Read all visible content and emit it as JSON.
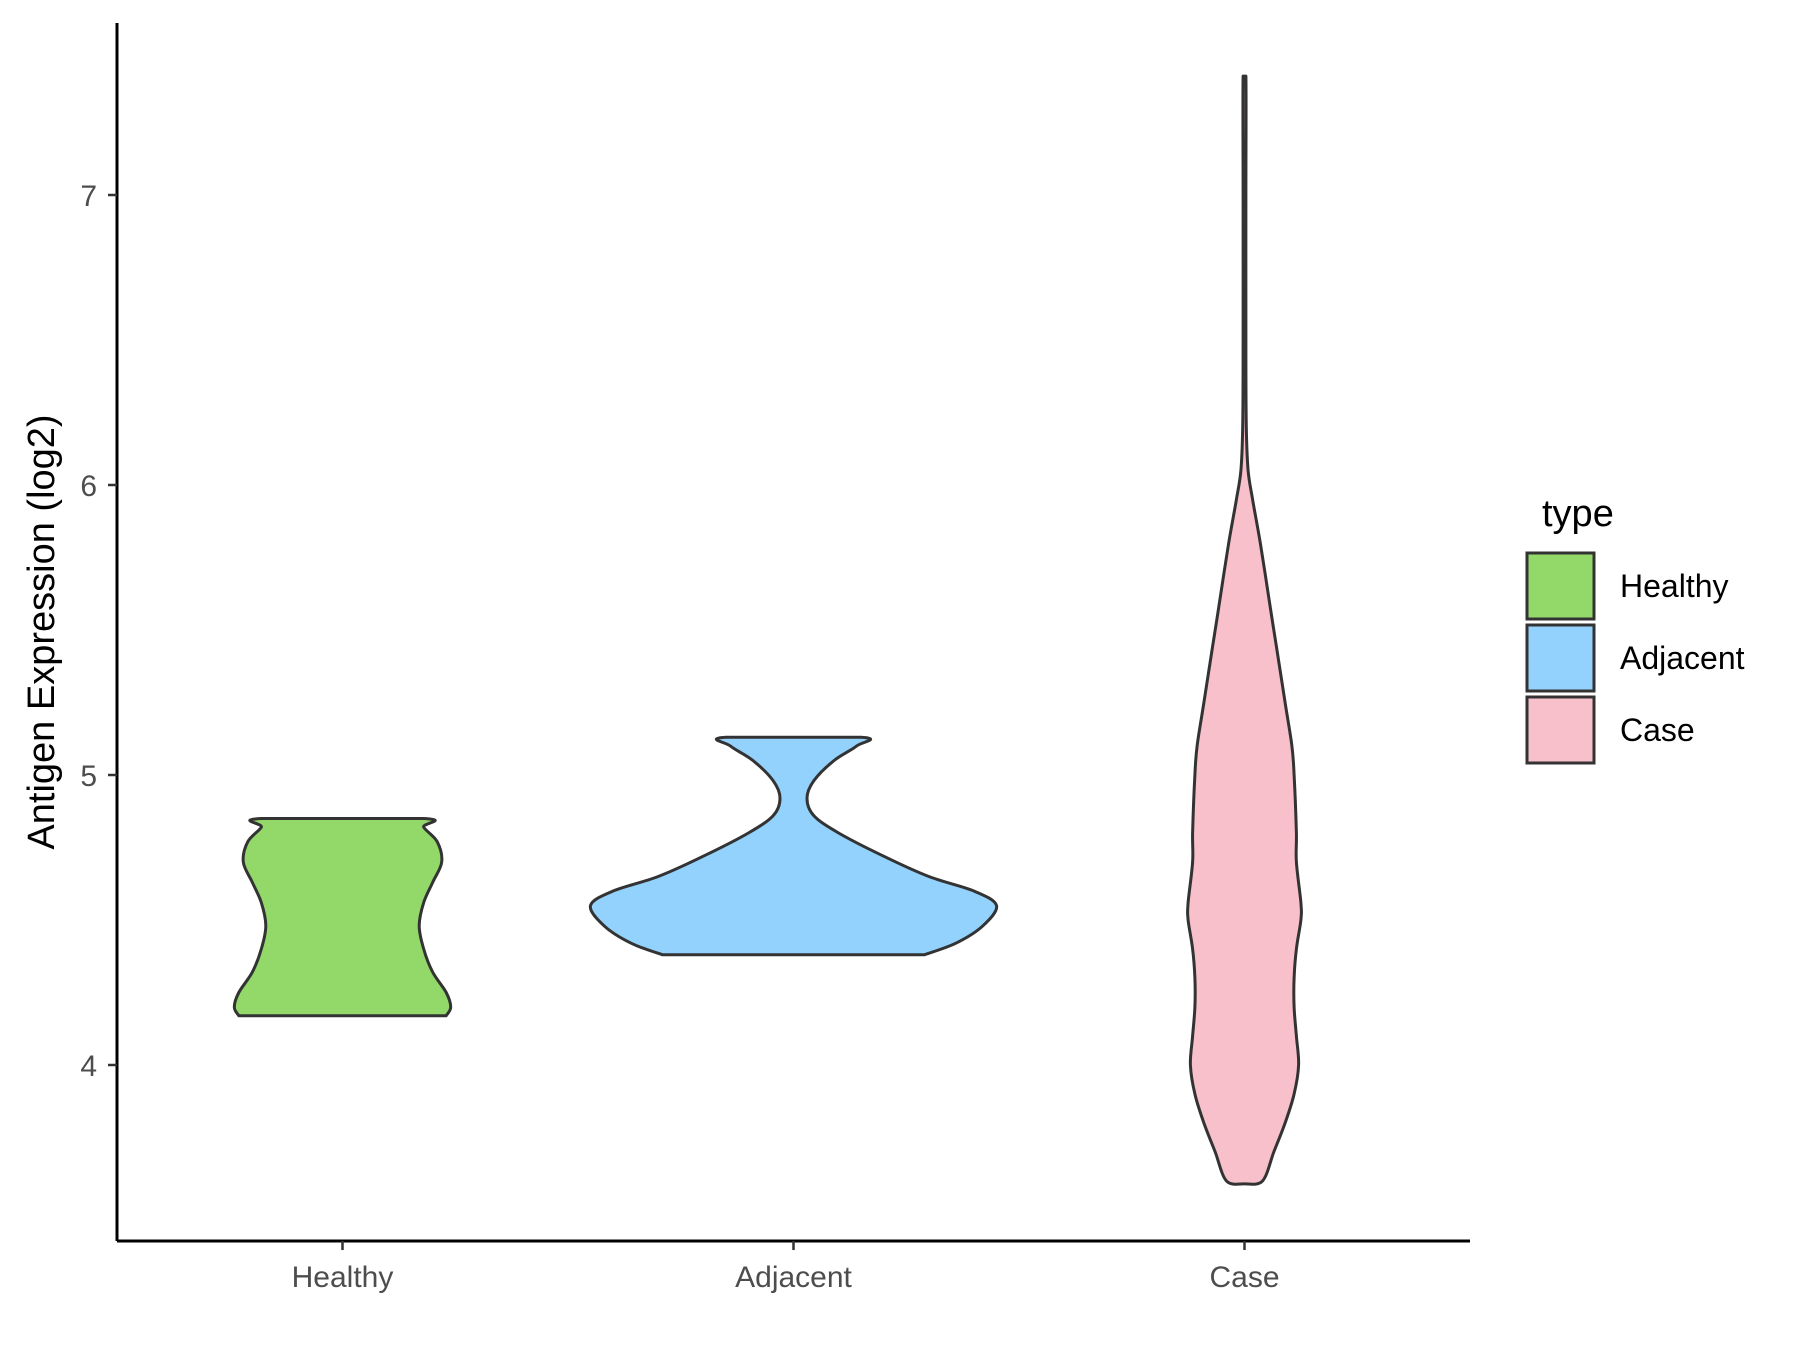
{
  "chart_data": {
    "type": "violin",
    "title": "",
    "xlabel": "",
    "ylabel": "Antigen Expression (log2)",
    "ylim": [
      3.45,
      7.6
    ],
    "yticks": [
      4,
      5,
      6,
      7
    ],
    "categories": [
      "Healthy",
      "Adjacent",
      "Case"
    ],
    "legend": {
      "title": "type",
      "position": "right",
      "entries": [
        "Healthy",
        "Adjacent",
        "Case"
      ]
    },
    "grid": false,
    "series": [
      {
        "name": "Healthy",
        "color": "#93d96a",
        "min": 4.17,
        "max": 4.85,
        "profile": [
          [
            4.17,
            0.23
          ],
          [
            4.2,
            0.24
          ],
          [
            4.25,
            0.23
          ],
          [
            4.32,
            0.2
          ],
          [
            4.4,
            0.18
          ],
          [
            4.48,
            0.17
          ],
          [
            4.56,
            0.18
          ],
          [
            4.63,
            0.2
          ],
          [
            4.7,
            0.22
          ],
          [
            4.77,
            0.21
          ],
          [
            4.82,
            0.18
          ],
          [
            4.85,
            0.18
          ]
        ]
      },
      {
        "name": "Adjacent",
        "color": "#93d2fc",
        "min": 4.38,
        "max": 5.13,
        "profile": [
          [
            4.38,
            0.29
          ],
          [
            4.42,
            0.36
          ],
          [
            4.48,
            0.42
          ],
          [
            4.55,
            0.45
          ],
          [
            4.6,
            0.4
          ],
          [
            4.65,
            0.3
          ],
          [
            4.72,
            0.2
          ],
          [
            4.8,
            0.1
          ],
          [
            4.86,
            0.045
          ],
          [
            4.92,
            0.03
          ],
          [
            4.98,
            0.045
          ],
          [
            5.05,
            0.09
          ],
          [
            5.1,
            0.14
          ],
          [
            5.13,
            0.15
          ]
        ]
      },
      {
        "name": "Case",
        "color": "#f7c0cb",
        "min": 3.59,
        "max": 7.41,
        "profile": [
          [
            3.59,
            0.0
          ],
          [
            3.6,
            0.04
          ],
          [
            3.7,
            0.065
          ],
          [
            3.8,
            0.09
          ],
          [
            3.9,
            0.11
          ],
          [
            4.0,
            0.12
          ],
          [
            4.1,
            0.115
          ],
          [
            4.2,
            0.11
          ],
          [
            4.3,
            0.11
          ],
          [
            4.4,
            0.115
          ],
          [
            4.5,
            0.125
          ],
          [
            4.56,
            0.125
          ],
          [
            4.7,
            0.115
          ],
          [
            4.8,
            0.115
          ],
          [
            5.0,
            0.11
          ],
          [
            5.1,
            0.105
          ],
          [
            5.25,
            0.09
          ],
          [
            5.45,
            0.07
          ],
          [
            5.6,
            0.055
          ],
          [
            5.8,
            0.035
          ],
          [
            5.95,
            0.018
          ],
          [
            6.05,
            0.008
          ],
          [
            6.2,
            0.004
          ],
          [
            6.5,
            0.003
          ],
          [
            7.0,
            0.003
          ],
          [
            7.41,
            0.003
          ]
        ]
      }
    ]
  }
}
